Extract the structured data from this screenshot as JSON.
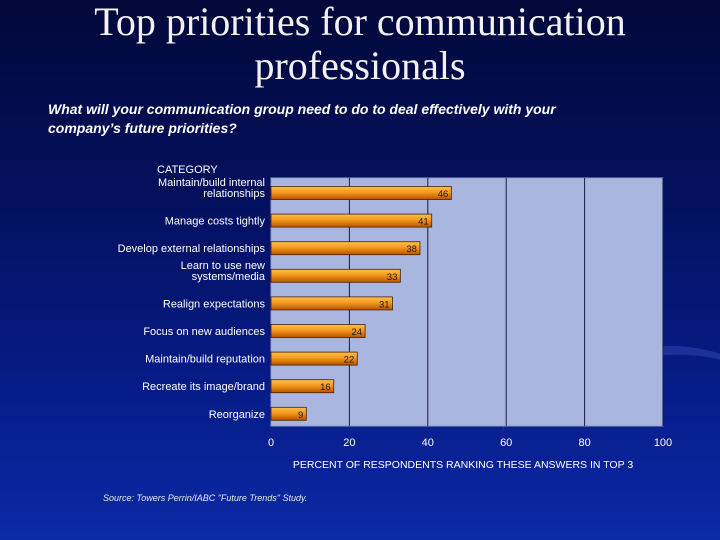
{
  "header": {
    "title_line1": "Top priorities for communication",
    "title_line2": "professionals",
    "subtitle_line1": "What will your communication group need to do to deal effectively with your",
    "subtitle_line2": "company’s future priorities?"
  },
  "footer": {
    "source": "Source: Towers Perrin/IABC \"Future Trends\" Study."
  },
  "colors": {
    "plot_bg": "#a8b6e0",
    "bar_light": "#f6a623",
    "bar_dark": "#c45a00",
    "grid": "#1a1a40"
  },
  "chart_data": {
    "type": "bar",
    "orientation": "horizontal",
    "category_axis_title": "CATEGORY",
    "categories": [
      [
        "Maintain/build internal",
        "relationships"
      ],
      [
        "Manage costs tightly"
      ],
      [
        "Develop external relationships"
      ],
      [
        "Learn to use new",
        "systems/media"
      ],
      [
        "Realign expectations"
      ],
      [
        "Focus on new audiences"
      ],
      [
        "Maintain/build reputation"
      ],
      [
        "Recreate its image/brand"
      ],
      [
        "Reorganize"
      ]
    ],
    "values": [
      46,
      41,
      38,
      33,
      31,
      24,
      22,
      16,
      9
    ],
    "xlabel": "PERCENT OF RESPONDENTS RANKING THESE ANSWERS IN TOP 3",
    "xlim": [
      0,
      100
    ],
    "xticks": [
      0,
      20,
      40,
      60,
      80,
      100
    ],
    "grid": true
  }
}
